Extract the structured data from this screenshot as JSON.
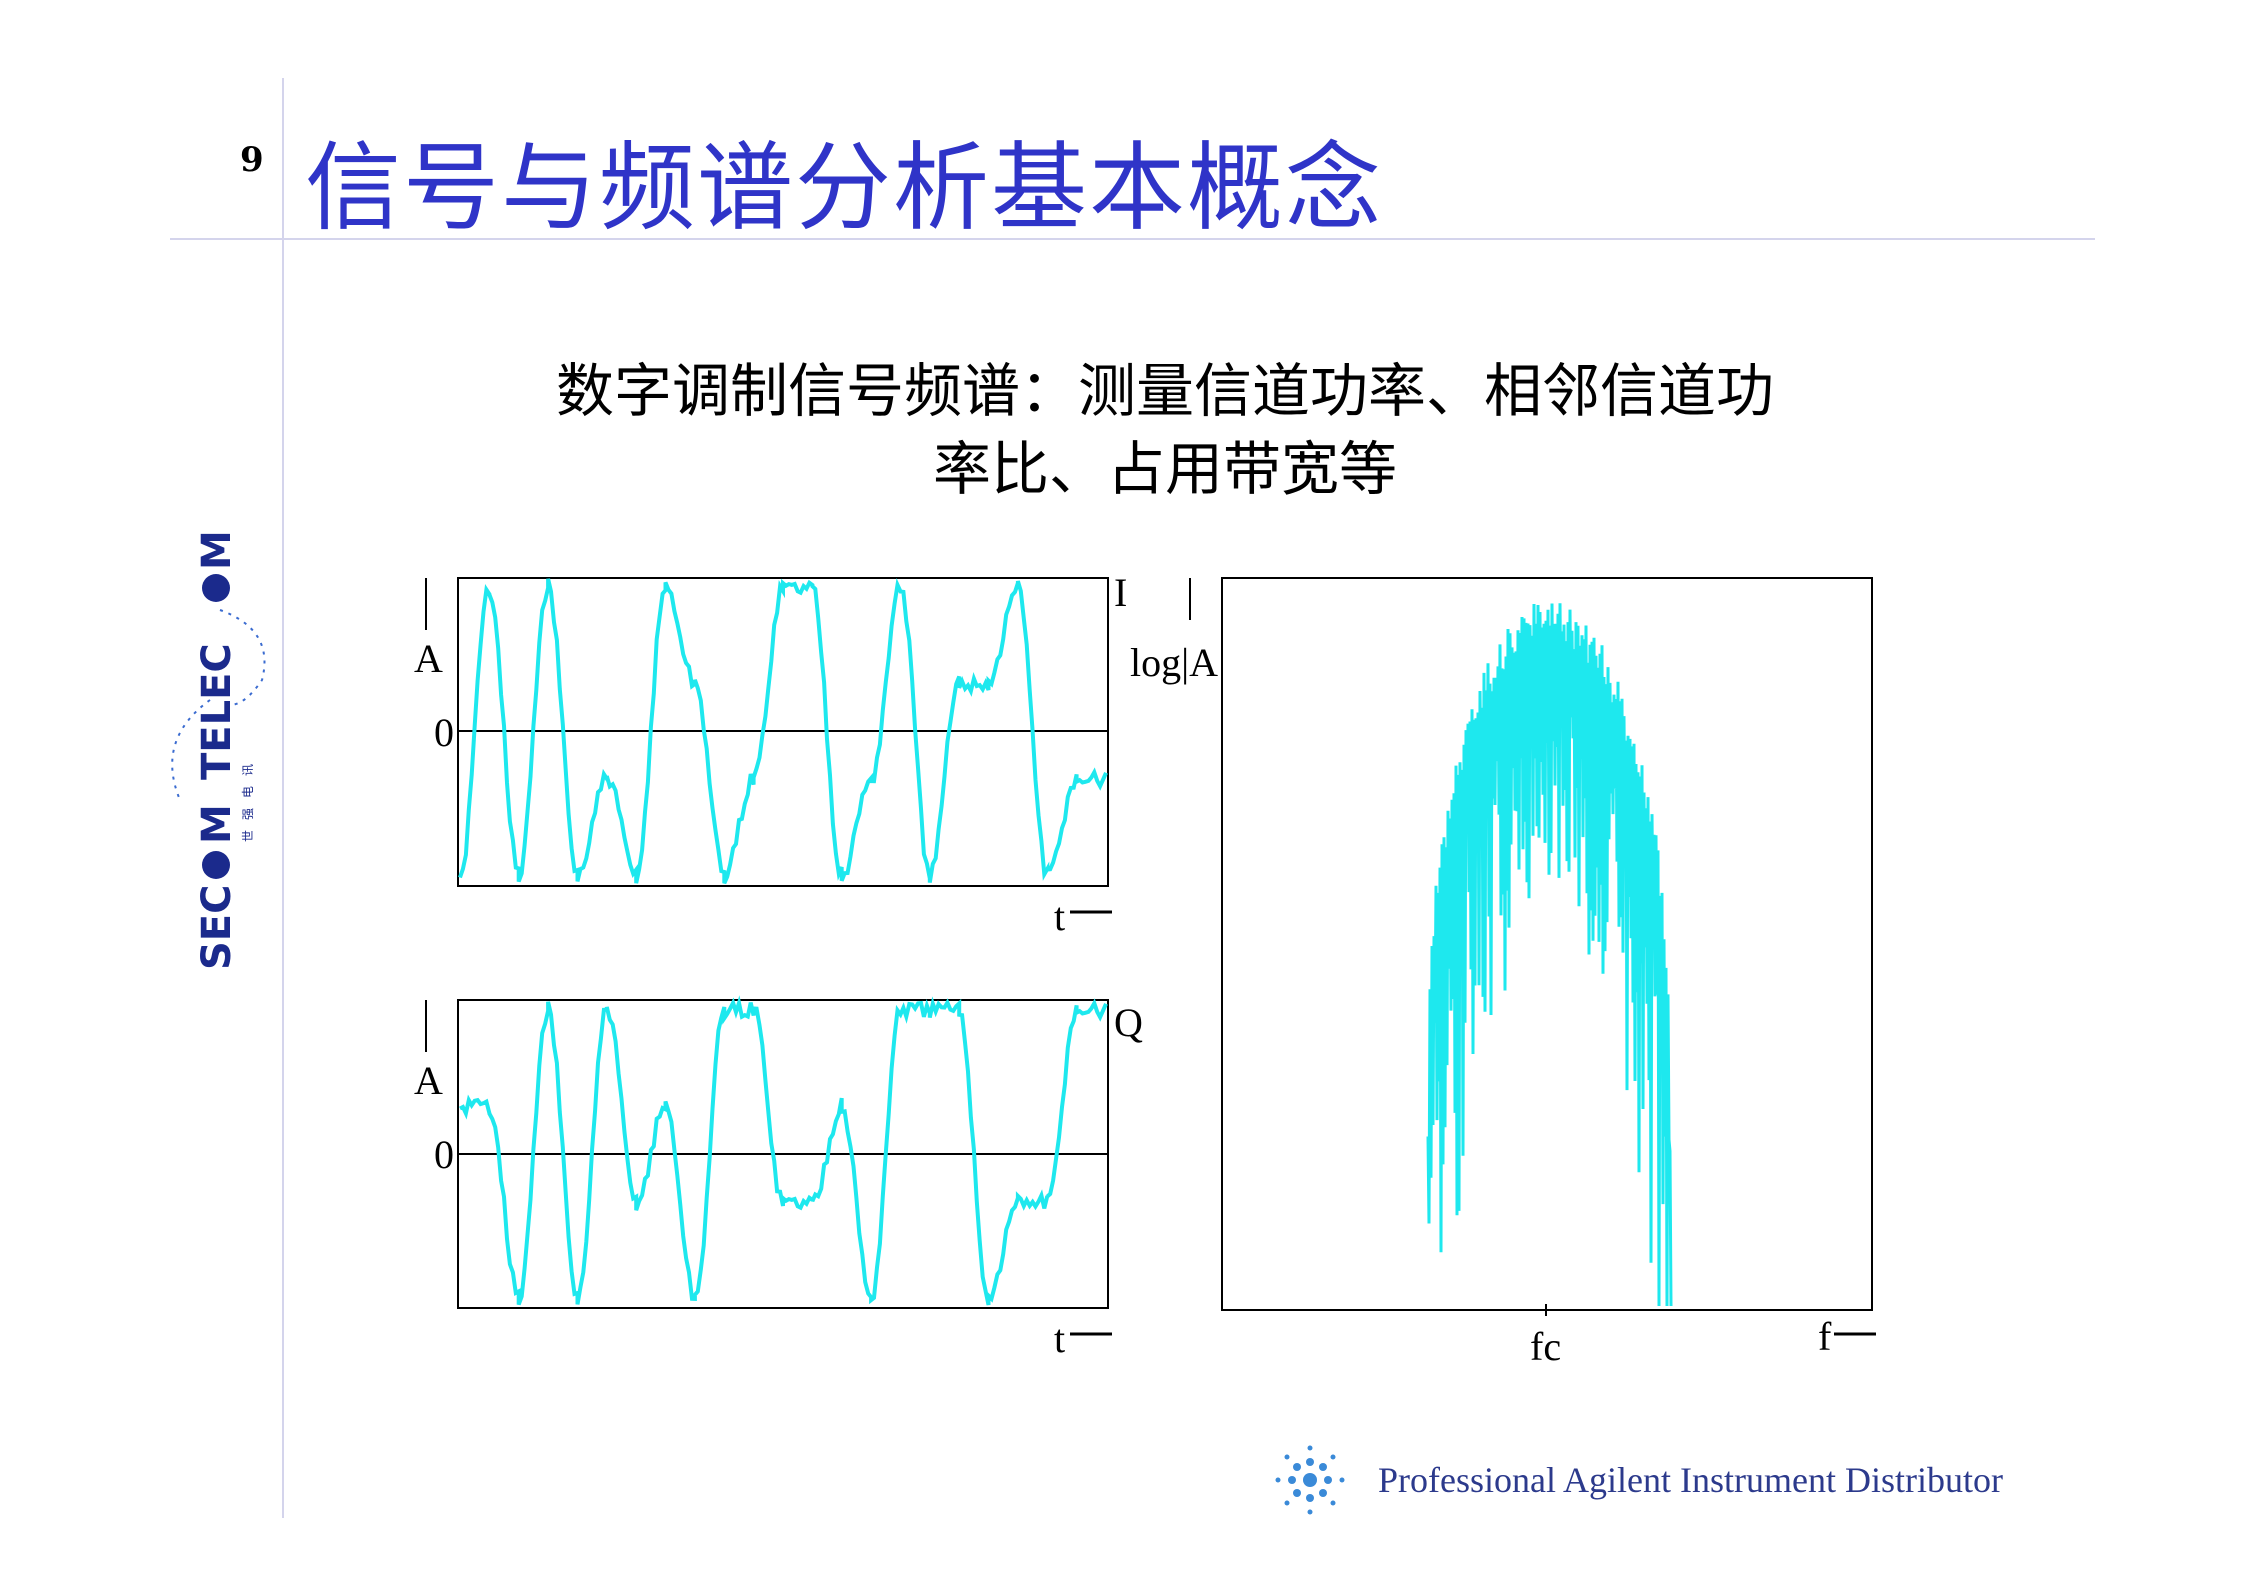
{
  "slide": {
    "page_number": "9",
    "title": "信号与频谱分析基本概念",
    "subtitle_line1": "数字调制信号频谱：测量信道功率、相邻信道功",
    "subtitle_line2": "率比、占用带宽等"
  },
  "logo": {
    "text": "SEC M TELEC M",
    "chinese": "世 强 电 讯",
    "color": "#1b2a8c"
  },
  "footer": {
    "text": "Professional Agilent Instrument Distributor",
    "icon": "agilent-spark-icon"
  },
  "chart_data": [
    {
      "type": "line",
      "panel": "I",
      "ylabel": "A",
      "xlabel": "t",
      "y_zero_label": "0",
      "trace_label": "I",
      "color": "#1ee8ee",
      "levels": [
        -3,
        3,
        -3,
        3,
        -3,
        -1,
        -3,
        3,
        1,
        -3,
        -1,
        3,
        3,
        -3,
        -1,
        3,
        -3,
        1,
        1,
        3,
        -3,
        -1
      ]
    },
    {
      "type": "line",
      "panel": "Q",
      "ylabel": "A",
      "xlabel": "t",
      "y_zero_label": "0",
      "trace_label": "Q",
      "color": "#1ee8ee",
      "levels": [
        1,
        1,
        -3,
        3,
        -3,
        3,
        -1,
        1,
        -3,
        3,
        3,
        -1,
        -1,
        1,
        -3,
        3,
        3,
        3,
        -3,
        -1,
        -1,
        3
      ]
    },
    {
      "type": "area",
      "panel": "spectrum",
      "ylabel": "log|A|",
      "xlabel": "f",
      "center_label": "fc",
      "color": "#1ee8ee"
    }
  ]
}
